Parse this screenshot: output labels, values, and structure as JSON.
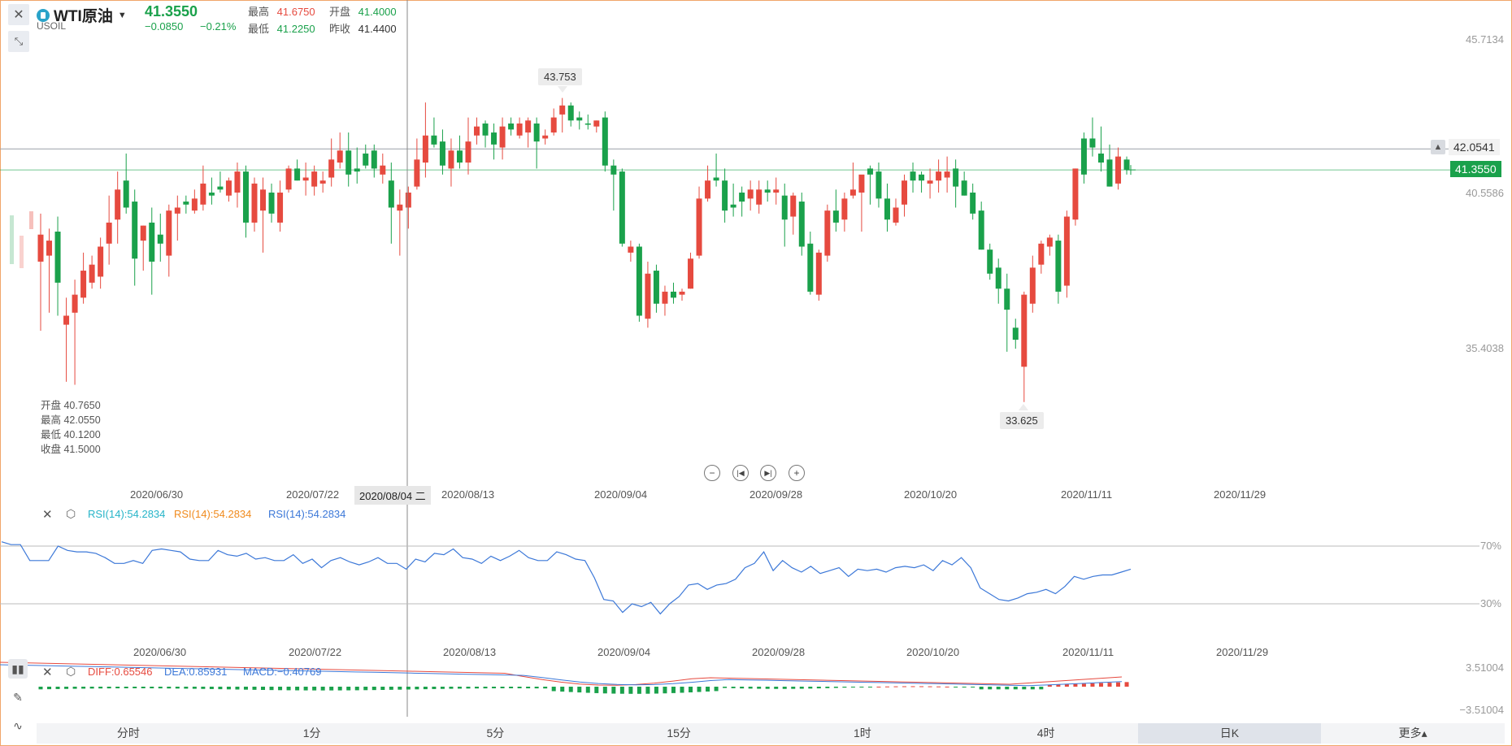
{
  "header": {
    "title": "WTI原油",
    "symbol": "USOIL",
    "price": "41.3550",
    "change": "−0.0850",
    "change_pct": "−0.21%",
    "high_label": "最高",
    "high": "41.6750",
    "open_label": "开盘",
    "open": "41.4000",
    "low_label": "最低",
    "low": "41.2250",
    "prev_label": "昨收",
    "prev": "41.4400"
  },
  "crosshair": {
    "date_label": "2020/08/04 二",
    "ohlc": {
      "open": "开盘 40.7650",
      "high": "最高 42.0550",
      "low": "最低 40.1200",
      "close": "收盘 41.5000"
    }
  },
  "price_axis": {
    "labels": [
      "45.7134",
      "40.5586",
      "35.4038"
    ],
    "alert_price": "42.0541",
    "current_price": "41.3550"
  },
  "callouts": {
    "max": "43.753",
    "min": "33.625"
  },
  "dates": [
    "2020/06/30",
    "2020/07/22",
    "2020/08/13",
    "2020/09/04",
    "2020/09/28",
    "2020/10/20",
    "2020/11/11",
    "2020/11/29"
  ],
  "rsi": {
    "labels": [
      "RSI(14):54.2834",
      "RSI(14):54.2834",
      "RSI(14):54.2834"
    ],
    "colors": [
      "#26b4c8",
      "#f08a1c",
      "#3c78d8"
    ],
    "levels": [
      "70%",
      "30%"
    ],
    "values": [
      73,
      71,
      71,
      60,
      60,
      60,
      70,
      67,
      66,
      66,
      65,
      62,
      58,
      58,
      60,
      58,
      67,
      68,
      67,
      66,
      61,
      60,
      60,
      67,
      64,
      63,
      65,
      61,
      62,
      60,
      60,
      64,
      58,
      61,
      55,
      60,
      62,
      59,
      57,
      59,
      62,
      58,
      58,
      54,
      61,
      59,
      65,
      64,
      68,
      62,
      61,
      58,
      63,
      60,
      63,
      67,
      62,
      60,
      60,
      66,
      64,
      61,
      60,
      48,
      33,
      32,
      24,
      30,
      28,
      31,
      23,
      30,
      35,
      43,
      44,
      40,
      43,
      44,
      47,
      55,
      58,
      66,
      53,
      60,
      55,
      52,
      56,
      51,
      53,
      55,
      49,
      54,
      53,
      54,
      52,
      55,
      56,
      55,
      57,
      53,
      60,
      57,
      62,
      55,
      41,
      37,
      33,
      32,
      34,
      37,
      38,
      40,
      37,
      42,
      49,
      47,
      49,
      50,
      50,
      52,
      54
    ]
  },
  "macd": {
    "diff_label": "DIFF:0.65546",
    "dea_label": "DEA:0.85931",
    "macd_label": "MACD:−0.40769",
    "axis": [
      "3.51004",
      "−3.51004"
    ]
  },
  "tabs": [
    "分时",
    "1分",
    "5分",
    "15分",
    "1时",
    "4时",
    "日K",
    "更多▴"
  ],
  "active_tab": 6,
  "colors": {
    "up": "#e64a3f",
    "down": "#1aa14b"
  },
  "chart_data": {
    "type": "candlestick",
    "title": "WTI原油",
    "ylim": [
      33,
      46
    ],
    "candles": [
      {
        "o": 38.3,
        "h": 39.9,
        "l": 36.0,
        "c": 39.2,
        "d": "up"
      },
      {
        "o": 38.5,
        "h": 39.4,
        "l": 36.6,
        "c": 39.0,
        "d": "up"
      },
      {
        "o": 39.3,
        "h": 39.8,
        "l": 36.5,
        "c": 37.6,
        "d": "down"
      },
      {
        "o": 36.2,
        "h": 37.1,
        "l": 34.3,
        "c": 36.5,
        "d": "up"
      },
      {
        "o": 36.6,
        "h": 37.7,
        "l": 34.2,
        "c": 37.2,
        "d": "up"
      },
      {
        "o": 37.1,
        "h": 38.6,
        "l": 36.9,
        "c": 38.0,
        "d": "up"
      },
      {
        "o": 37.6,
        "h": 38.5,
        "l": 37.4,
        "c": 38.2,
        "d": "up"
      },
      {
        "o": 37.8,
        "h": 39.1,
        "l": 37.4,
        "c": 38.8,
        "d": "up"
      },
      {
        "o": 38.9,
        "h": 40.5,
        "l": 38.2,
        "c": 39.6,
        "d": "up"
      },
      {
        "o": 39.7,
        "h": 41.3,
        "l": 38.9,
        "c": 40.7,
        "d": "up"
      },
      {
        "o": 40.1,
        "h": 41.9,
        "l": 39.9,
        "c": 41.0,
        "d": "down"
      },
      {
        "o": 40.3,
        "h": 40.7,
        "l": 37.5,
        "c": 38.4,
        "d": "down"
      },
      {
        "o": 39.0,
        "h": 39.5,
        "l": 38.0,
        "c": 39.5,
        "d": "up"
      },
      {
        "o": 39.6,
        "h": 40.1,
        "l": 37.2,
        "c": 38.3,
        "d": "down"
      },
      {
        "o": 38.9,
        "h": 39.9,
        "l": 38.3,
        "c": 39.2,
        "d": "down"
      },
      {
        "o": 38.5,
        "h": 40.2,
        "l": 37.8,
        "c": 40.0,
        "d": "up"
      },
      {
        "o": 39.9,
        "h": 40.5,
        "l": 39.0,
        "c": 40.1,
        "d": "up"
      },
      {
        "o": 40.2,
        "h": 40.5,
        "l": 39.9,
        "c": 40.3,
        "d": "down"
      },
      {
        "o": 40.0,
        "h": 40.7,
        "l": 39.9,
        "c": 40.4,
        "d": "up"
      },
      {
        "o": 40.2,
        "h": 41.5,
        "l": 40.0,
        "c": 40.9,
        "d": "up"
      },
      {
        "o": 40.5,
        "h": 41.1,
        "l": 40.2,
        "c": 40.6,
        "d": "down"
      },
      {
        "o": 40.7,
        "h": 41.3,
        "l": 40.6,
        "c": 40.8,
        "d": "down"
      },
      {
        "o": 40.5,
        "h": 41.1,
        "l": 40.3,
        "c": 41.0,
        "d": "up"
      },
      {
        "o": 40.6,
        "h": 41.6,
        "l": 40.1,
        "c": 41.3,
        "d": "up"
      },
      {
        "o": 41.3,
        "h": 41.5,
        "l": 39.1,
        "c": 39.6,
        "d": "down"
      },
      {
        "o": 39.6,
        "h": 41.1,
        "l": 39.3,
        "c": 40.9,
        "d": "up"
      },
      {
        "o": 40.0,
        "h": 41.1,
        "l": 38.6,
        "c": 40.7,
        "d": "up"
      },
      {
        "o": 40.6,
        "h": 40.9,
        "l": 39.6,
        "c": 39.9,
        "d": "down"
      },
      {
        "o": 39.6,
        "h": 41.0,
        "l": 39.3,
        "c": 40.6,
        "d": "up"
      },
      {
        "o": 40.7,
        "h": 41.5,
        "l": 40.6,
        "c": 41.4,
        "d": "up"
      },
      {
        "o": 41.4,
        "h": 41.7,
        "l": 41.0,
        "c": 41.0,
        "d": "down"
      },
      {
        "o": 41.0,
        "h": 41.6,
        "l": 40.5,
        "c": 41.1,
        "d": "up"
      },
      {
        "o": 41.3,
        "h": 41.5,
        "l": 40.5,
        "c": 40.8,
        "d": "up"
      },
      {
        "o": 40.9,
        "h": 41.3,
        "l": 40.6,
        "c": 41.0,
        "d": "up"
      },
      {
        "o": 41.1,
        "h": 42.4,
        "l": 40.8,
        "c": 41.7,
        "d": "up"
      },
      {
        "o": 41.6,
        "h": 42.6,
        "l": 41.4,
        "c": 42.0,
        "d": "up"
      },
      {
        "o": 42.0,
        "h": 42.6,
        "l": 40.8,
        "c": 41.2,
        "d": "down"
      },
      {
        "o": 41.3,
        "h": 42.1,
        "l": 40.9,
        "c": 41.4,
        "d": "down"
      },
      {
        "o": 41.5,
        "h": 42.2,
        "l": 41.4,
        "c": 41.9,
        "d": "down"
      },
      {
        "o": 42.0,
        "h": 42.2,
        "l": 41.1,
        "c": 41.4,
        "d": "down"
      },
      {
        "o": 41.5,
        "h": 41.9,
        "l": 40.9,
        "c": 41.2,
        "d": "up"
      },
      {
        "o": 41.0,
        "h": 41.6,
        "l": 38.9,
        "c": 40.1,
        "d": "down"
      },
      {
        "o": 40.0,
        "h": 40.7,
        "l": 38.5,
        "c": 40.2,
        "d": "up"
      },
      {
        "o": 40.1,
        "h": 40.8,
        "l": 39.4,
        "c": 40.6,
        "d": "up"
      },
      {
        "o": 40.8,
        "h": 42.4,
        "l": 40.7,
        "c": 41.7,
        "d": "up"
      },
      {
        "o": 41.6,
        "h": 43.6,
        "l": 41.1,
        "c": 42.5,
        "d": "up"
      },
      {
        "o": 42.5,
        "h": 43.1,
        "l": 42.1,
        "c": 42.2,
        "d": "down"
      },
      {
        "o": 42.3,
        "h": 42.7,
        "l": 41.2,
        "c": 41.5,
        "d": "down"
      },
      {
        "o": 41.4,
        "h": 42.4,
        "l": 40.8,
        "c": 42.0,
        "d": "up"
      },
      {
        "o": 42.0,
        "h": 42.5,
        "l": 41.4,
        "c": 41.6,
        "d": "down"
      },
      {
        "o": 41.6,
        "h": 43.1,
        "l": 41.2,
        "c": 42.3,
        "d": "up"
      },
      {
        "o": 42.5,
        "h": 43.1,
        "l": 42.2,
        "c": 42.8,
        "d": "up"
      },
      {
        "o": 42.9,
        "h": 43.0,
        "l": 42.1,
        "c": 42.5,
        "d": "down"
      },
      {
        "o": 42.6,
        "h": 42.9,
        "l": 41.7,
        "c": 42.2,
        "d": "down"
      },
      {
        "o": 42.1,
        "h": 43.1,
        "l": 41.7,
        "c": 42.8,
        "d": "up"
      },
      {
        "o": 42.7,
        "h": 43.1,
        "l": 42.5,
        "c": 42.9,
        "d": "down"
      },
      {
        "o": 42.9,
        "h": 43.1,
        "l": 42.4,
        "c": 42.5,
        "d": "up"
      },
      {
        "o": 42.6,
        "h": 43.1,
        "l": 42.1,
        "c": 43.0,
        "d": "up"
      },
      {
        "o": 42.9,
        "h": 43.1,
        "l": 41.4,
        "c": 42.3,
        "d": "down"
      },
      {
        "o": 42.4,
        "h": 42.7,
        "l": 42.2,
        "c": 42.5,
        "d": "up"
      },
      {
        "o": 42.6,
        "h": 43.4,
        "l": 42.5,
        "c": 43.1,
        "d": "up"
      },
      {
        "o": 43.2,
        "h": 43.75,
        "l": 42.6,
        "c": 43.5,
        "d": "up"
      },
      {
        "o": 43.5,
        "h": 43.6,
        "l": 42.8,
        "c": 43.0,
        "d": "down"
      },
      {
        "o": 43.0,
        "h": 43.3,
        "l": 42.7,
        "c": 43.1,
        "d": "down"
      },
      {
        "o": 42.9,
        "h": 43.2,
        "l": 42.7,
        "c": 42.9,
        "d": "down"
      },
      {
        "o": 42.8,
        "h": 43.0,
        "l": 42.6,
        "c": 43.0,
        "d": "up"
      },
      {
        "o": 43.1,
        "h": 43.3,
        "l": 41.3,
        "c": 41.5,
        "d": "down"
      },
      {
        "o": 41.5,
        "h": 41.7,
        "l": 40.0,
        "c": 41.2,
        "d": "down"
      },
      {
        "o": 41.3,
        "h": 41.4,
        "l": 38.8,
        "c": 38.9,
        "d": "down"
      },
      {
        "o": 38.8,
        "h": 39.0,
        "l": 38.3,
        "c": 38.6,
        "d": "up"
      },
      {
        "o": 38.8,
        "h": 38.9,
        "l": 36.3,
        "c": 36.5,
        "d": "down"
      },
      {
        "o": 36.4,
        "h": 38.3,
        "l": 36.1,
        "c": 37.9,
        "d": "up"
      },
      {
        "o": 38.0,
        "h": 38.2,
        "l": 36.6,
        "c": 36.9,
        "d": "down"
      },
      {
        "o": 36.9,
        "h": 37.5,
        "l": 36.5,
        "c": 37.3,
        "d": "up"
      },
      {
        "o": 37.3,
        "h": 37.6,
        "l": 36.9,
        "c": 37.1,
        "d": "down"
      },
      {
        "o": 37.2,
        "h": 37.4,
        "l": 37.0,
        "c": 37.3,
        "d": "up"
      },
      {
        "o": 37.4,
        "h": 38.6,
        "l": 37.4,
        "c": 38.4,
        "d": "up"
      },
      {
        "o": 38.5,
        "h": 40.8,
        "l": 38.4,
        "c": 40.4,
        "d": "up"
      },
      {
        "o": 40.4,
        "h": 41.5,
        "l": 40.3,
        "c": 41.0,
        "d": "up"
      },
      {
        "o": 41.0,
        "h": 41.9,
        "l": 40.8,
        "c": 41.1,
        "d": "down"
      },
      {
        "o": 41.0,
        "h": 41.4,
        "l": 39.6,
        "c": 40.0,
        "d": "down"
      },
      {
        "o": 40.1,
        "h": 40.9,
        "l": 39.8,
        "c": 40.2,
        "d": "down"
      },
      {
        "o": 40.3,
        "h": 40.8,
        "l": 39.8,
        "c": 40.6,
        "d": "down"
      },
      {
        "o": 40.7,
        "h": 41.0,
        "l": 40.0,
        "c": 40.4,
        "d": "up"
      },
      {
        "o": 40.2,
        "h": 41.0,
        "l": 39.9,
        "c": 40.7,
        "d": "up"
      },
      {
        "o": 40.7,
        "h": 41.0,
        "l": 40.3,
        "c": 40.6,
        "d": "down"
      },
      {
        "o": 40.6,
        "h": 41.1,
        "l": 40.2,
        "c": 40.7,
        "d": "up"
      },
      {
        "o": 40.5,
        "h": 40.9,
        "l": 38.8,
        "c": 39.7,
        "d": "down"
      },
      {
        "o": 39.8,
        "h": 40.6,
        "l": 39.2,
        "c": 40.5,
        "d": "up"
      },
      {
        "o": 40.3,
        "h": 40.6,
        "l": 38.5,
        "c": 38.8,
        "d": "down"
      },
      {
        "o": 38.9,
        "h": 39.3,
        "l": 37.2,
        "c": 37.3,
        "d": "down"
      },
      {
        "o": 37.2,
        "h": 38.7,
        "l": 37.0,
        "c": 38.6,
        "d": "up"
      },
      {
        "o": 38.5,
        "h": 40.2,
        "l": 38.3,
        "c": 40.0,
        "d": "up"
      },
      {
        "o": 40.0,
        "h": 40.7,
        "l": 39.3,
        "c": 39.6,
        "d": "down"
      },
      {
        "o": 39.7,
        "h": 40.6,
        "l": 39.3,
        "c": 40.4,
        "d": "up"
      },
      {
        "o": 40.5,
        "h": 41.6,
        "l": 40.4,
        "c": 40.7,
        "d": "up"
      },
      {
        "o": 40.6,
        "h": 41.1,
        "l": 39.3,
        "c": 41.2,
        "d": "up"
      },
      {
        "o": 41.2,
        "h": 41.5,
        "l": 40.2,
        "c": 41.4,
        "d": "down"
      },
      {
        "o": 41.3,
        "h": 41.6,
        "l": 40.1,
        "c": 40.4,
        "d": "down"
      },
      {
        "o": 40.4,
        "h": 40.9,
        "l": 39.3,
        "c": 39.7,
        "d": "down"
      },
      {
        "o": 39.6,
        "h": 40.4,
        "l": 39.5,
        "c": 40.1,
        "d": "up"
      },
      {
        "o": 40.2,
        "h": 41.2,
        "l": 39.8,
        "c": 41.0,
        "d": "up"
      },
      {
        "o": 41.0,
        "h": 41.6,
        "l": 40.6,
        "c": 41.3,
        "d": "down"
      },
      {
        "o": 41.2,
        "h": 41.3,
        "l": 40.6,
        "c": 41.0,
        "d": "down"
      },
      {
        "o": 40.9,
        "h": 41.4,
        "l": 40.4,
        "c": 41.0,
        "d": "up"
      },
      {
        "o": 41.0,
        "h": 41.7,
        "l": 40.6,
        "c": 41.3,
        "d": "up"
      },
      {
        "o": 41.3,
        "h": 41.8,
        "l": 40.6,
        "c": 41.1,
        "d": "up"
      },
      {
        "o": 41.4,
        "h": 41.7,
        "l": 40.1,
        "c": 40.8,
        "d": "down"
      },
      {
        "o": 41.0,
        "h": 41.3,
        "l": 40.5,
        "c": 40.5,
        "d": "down"
      },
      {
        "o": 40.6,
        "h": 40.9,
        "l": 39.7,
        "c": 39.9,
        "d": "down"
      },
      {
        "o": 40.0,
        "h": 40.3,
        "l": 38.7,
        "c": 38.7,
        "d": "down"
      },
      {
        "o": 38.7,
        "h": 38.9,
        "l": 37.7,
        "c": 37.9,
        "d": "down"
      },
      {
        "o": 38.1,
        "h": 38.4,
        "l": 36.9,
        "c": 37.4,
        "d": "down"
      },
      {
        "o": 37.4,
        "h": 37.9,
        "l": 35.3,
        "c": 36.7,
        "d": "down"
      },
      {
        "o": 36.1,
        "h": 36.4,
        "l": 35.4,
        "c": 35.7,
        "d": "down"
      },
      {
        "o": 34.8,
        "h": 37.3,
        "l": 33.625,
        "c": 37.2,
        "d": "up"
      },
      {
        "o": 36.9,
        "h": 38.5,
        "l": 36.6,
        "c": 38.1,
        "d": "up"
      },
      {
        "o": 38.2,
        "h": 39.0,
        "l": 37.9,
        "c": 38.9,
        "d": "up"
      },
      {
        "o": 38.8,
        "h": 39.2,
        "l": 38.5,
        "c": 39.1,
        "d": "up"
      },
      {
        "o": 39.0,
        "h": 39.2,
        "l": 36.9,
        "c": 37.3,
        "d": "down"
      },
      {
        "o": 37.5,
        "h": 40.0,
        "l": 37.1,
        "c": 39.8,
        "d": "up"
      },
      {
        "o": 39.7,
        "h": 41.4,
        "l": 39.5,
        "c": 41.4,
        "d": "up"
      },
      {
        "o": 41.2,
        "h": 42.6,
        "l": 40.9,
        "c": 42.4,
        "d": "down"
      },
      {
        "o": 42.4,
        "h": 43.1,
        "l": 41.8,
        "c": 42.1,
        "d": "down"
      },
      {
        "o": 41.9,
        "h": 42.8,
        "l": 41.3,
        "c": 41.6,
        "d": "down"
      },
      {
        "o": 41.7,
        "h": 42.2,
        "l": 40.8,
        "c": 40.8,
        "d": "down"
      },
      {
        "o": 40.9,
        "h": 42.1,
        "l": 40.7,
        "c": 41.8,
        "d": "up"
      },
      {
        "o": 41.7,
        "h": 41.8,
        "l": 41.2,
        "c": 41.36,
        "d": "down"
      }
    ]
  }
}
